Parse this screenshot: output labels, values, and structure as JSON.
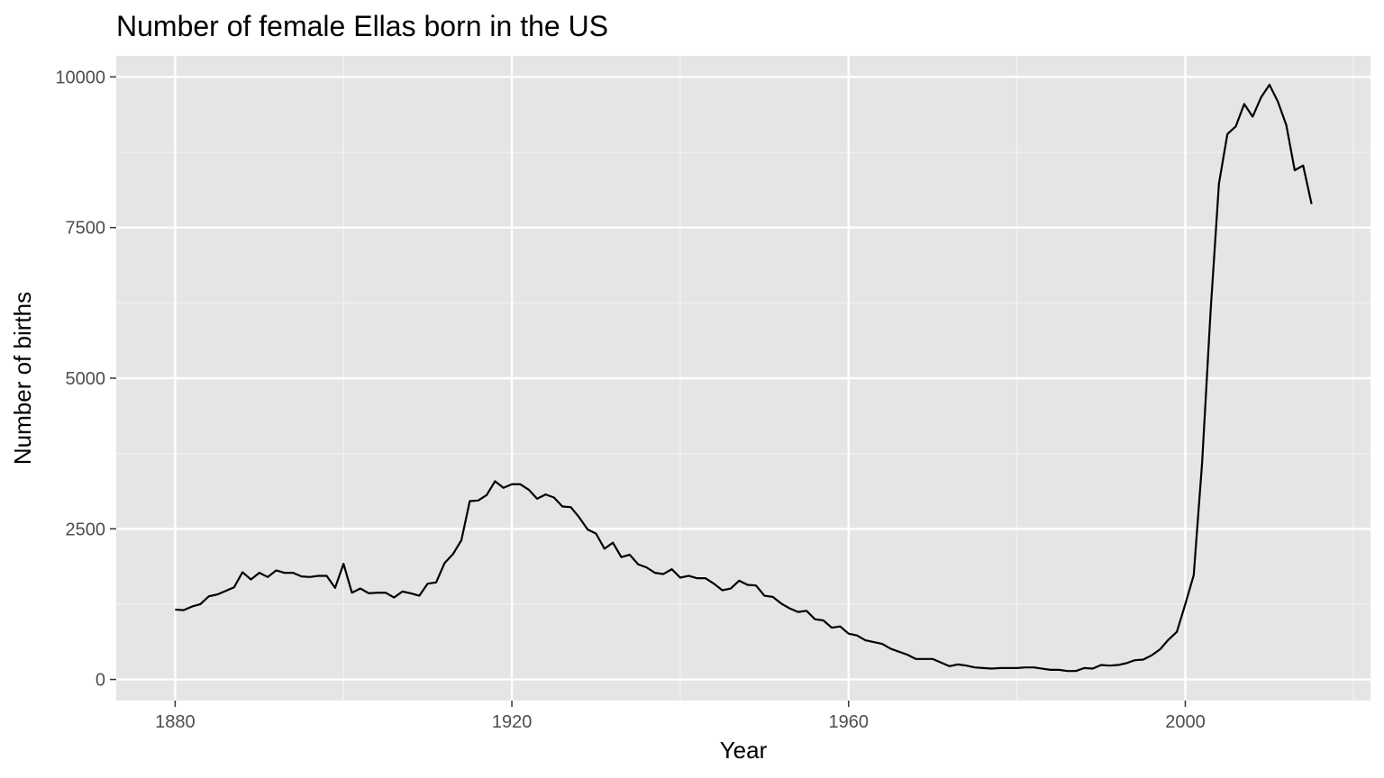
{
  "colors": {
    "panel_background": "#E5E5E5",
    "grid_major": "#FFFFFF",
    "grid_minor": "#F2F2F2",
    "line": "#000000",
    "tick_text": "#4D4D4D",
    "tick_mark": "#333333"
  },
  "chart_data": {
    "type": "line",
    "title": "Number of female Ellas born in the US",
    "xlabel": "Year",
    "ylabel": "Number of births",
    "xlim": [
      1873,
      2022
    ],
    "ylim": [
      -350,
      10350
    ],
    "grid": true,
    "x_ticks": [
      1880,
      1920,
      1960,
      2000
    ],
    "x_tick_labels": [
      "1880",
      "1920",
      "1960",
      "2000"
    ],
    "x_minor_ticks": [
      1900,
      1940,
      1980,
      2020
    ],
    "y_ticks": [
      0,
      2500,
      5000,
      7500,
      10000
    ],
    "y_tick_labels": [
      "0",
      "2500",
      "5000",
      "7500",
      "10000"
    ],
    "y_minor_ticks": [
      1250,
      3750,
      6250,
      8750
    ],
    "x": [
      1880,
      1881,
      1882,
      1883,
      1884,
      1885,
      1886,
      1887,
      1888,
      1889,
      1890,
      1891,
      1892,
      1893,
      1894,
      1895,
      1896,
      1897,
      1898,
      1899,
      1900,
      1901,
      1902,
      1903,
      1904,
      1905,
      1906,
      1907,
      1908,
      1909,
      1910,
      1911,
      1912,
      1913,
      1914,
      1915,
      1916,
      1917,
      1918,
      1919,
      1920,
      1921,
      1922,
      1923,
      1924,
      1925,
      1926,
      1927,
      1928,
      1929,
      1930,
      1931,
      1932,
      1933,
      1934,
      1935,
      1936,
      1937,
      1938,
      1939,
      1940,
      1941,
      1942,
      1943,
      1944,
      1945,
      1946,
      1947,
      1948,
      1949,
      1950,
      1951,
      1952,
      1953,
      1954,
      1955,
      1956,
      1957,
      1958,
      1959,
      1960,
      1961,
      1962,
      1963,
      1964,
      1965,
      1966,
      1967,
      1968,
      1969,
      1970,
      1971,
      1972,
      1973,
      1974,
      1975,
      1976,
      1977,
      1978,
      1979,
      1980,
      1981,
      1982,
      1983,
      1984,
      1985,
      1986,
      1987,
      1988,
      1989,
      1990,
      1991,
      1992,
      1993,
      1994,
      1995,
      1996,
      1997,
      1998,
      1999,
      2000,
      2001,
      2002,
      2003,
      2004,
      2005,
      2006,
      2007,
      2008,
      2009,
      2010,
      2011,
      2012,
      2013,
      2014,
      2015
    ],
    "series": [
      {
        "values": [
          1160,
          1150,
          1210,
          1250,
          1380,
          1410,
          1470,
          1530,
          1780,
          1660,
          1770,
          1700,
          1810,
          1770,
          1770,
          1710,
          1700,
          1720,
          1720,
          1520,
          1920,
          1440,
          1510,
          1430,
          1440,
          1440,
          1360,
          1460,
          1430,
          1390,
          1590,
          1610,
          1930,
          2080,
          2310,
          2960,
          2970,
          3060,
          3290,
          3180,
          3240,
          3240,
          3150,
          3000,
          3070,
          3020,
          2870,
          2860,
          2690,
          2490,
          2420,
          2170,
          2270,
          2030,
          2070,
          1910,
          1860,
          1770,
          1750,
          1830,
          1690,
          1720,
          1680,
          1680,
          1590,
          1480,
          1510,
          1640,
          1570,
          1560,
          1390,
          1370,
          1260,
          1180,
          1120,
          1140,
          1000,
          980,
          860,
          880,
          760,
          730,
          650,
          620,
          590,
          510,
          460,
          410,
          340,
          340,
          340,
          280,
          220,
          250,
          230,
          200,
          190,
          180,
          190,
          190,
          190,
          200,
          200,
          180,
          160,
          160,
          140,
          140,
          190,
          180,
          240,
          230,
          240,
          270,
          320,
          330,
          400,
          500,
          660,
          790,
          1250,
          1730,
          3600,
          6100,
          8230,
          9050,
          9180,
          9550,
          9340,
          9660,
          9870,
          9590,
          9200,
          8450,
          8530,
          7890
        ]
      }
    ]
  }
}
